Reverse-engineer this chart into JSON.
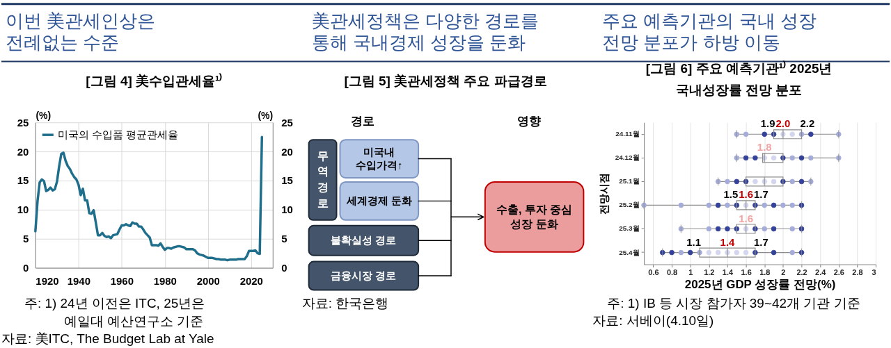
{
  "chart_data": [
    {
      "type": "line",
      "title": "이번 美관세인상은\n전례없는 수준",
      "subtitle": "[그림 4] 美수입관세율¹⁾",
      "x": [
        1920,
        1921,
        1922,
        1923,
        1924,
        1925,
        1926,
        1927,
        1928,
        1929,
        1930,
        1931,
        1932,
        1933,
        1934,
        1935,
        1936,
        1937,
        1938,
        1939,
        1940,
        1941,
        1942,
        1943,
        1944,
        1945,
        1946,
        1947,
        1948,
        1949,
        1950,
        1951,
        1952,
        1953,
        1954,
        1955,
        1956,
        1957,
        1958,
        1959,
        1960,
        1961,
        1962,
        1963,
        1964,
        1965,
        1966,
        1967,
        1968,
        1969,
        1970,
        1971,
        1972,
        1973,
        1974,
        1975,
        1976,
        1977,
        1978,
        1979,
        1980,
        1981,
        1982,
        1983,
        1984,
        1985,
        1986,
        1987,
        1988,
        1989,
        1990,
        1991,
        1992,
        1993,
        1994,
        1995,
        1996,
        1997,
        1998,
        1999,
        2000,
        2001,
        2002,
        2003,
        2004,
        2005,
        2006,
        2007,
        2008,
        2009,
        2010,
        2011,
        2012,
        2013,
        2014,
        2015,
        2016,
        2017,
        2018,
        2019,
        2020,
        2021,
        2022,
        2023,
        2024,
        2025
      ],
      "series": [
        {
          "name": "미국의 수입품 평균관세율",
          "color": "#1f6e8c",
          "values": [
            6.3,
            11.5,
            14.7,
            15.2,
            14.9,
            13.2,
            13.4,
            13.8,
            13.3,
            13.5,
            14.8,
            17.4,
            19.6,
            19.8,
            18.4,
            17.5,
            17.0,
            16.2,
            15.6,
            15.2,
            14.3,
            12.5,
            13.6,
            11.6,
            11.6,
            9.4,
            9.3,
            9.9,
            7.8,
            5.6,
            5.6,
            6.0,
            5.5,
            5.3,
            5.4,
            5.1,
            5.6,
            5.7,
            5.8,
            6.6,
            7.3,
            7.3,
            7.5,
            7.3,
            7.2,
            7.8,
            7.6,
            7.6,
            7.1,
            7.1,
            6.6,
            6.0,
            5.6,
            5.2,
            3.9,
            3.9,
            3.9,
            3.8,
            4.2,
            3.6,
            3.1,
            3.4,
            3.4,
            3.3,
            3.5,
            3.6,
            3.7,
            3.7,
            3.6,
            3.5,
            3.2,
            3.2,
            3.2,
            3.2,
            3.0,
            2.5,
            2.3,
            2.2,
            2.1,
            1.9,
            1.7,
            1.7,
            1.7,
            1.6,
            1.5,
            1.5,
            1.4,
            1.4,
            1.4,
            1.3,
            1.4,
            1.4,
            1.4,
            1.4,
            1.5,
            1.5,
            1.5,
            1.5,
            2.0,
            2.9,
            2.9,
            2.9,
            3.0,
            2.5,
            2.4,
            22.5
          ]
        }
      ],
      "xlim": [
        1920,
        2030
      ],
      "xticks": [
        1920,
        1940,
        1960,
        1980,
        2000,
        2020
      ],
      "ylim": [
        0,
        25
      ],
      "yticks": [
        0,
        5,
        10,
        15,
        20,
        25
      ],
      "ylabel": "(%)",
      "y2lim": [
        0,
        25
      ],
      "y2ticks": [
        0,
        5,
        10,
        15,
        20,
        25
      ],
      "y2label": "(%)",
      "grid": true,
      "legend": "top left",
      "annotations": [
        "주: 1) 24년 이전은 ITC, 25년은\n예일대 예산연구소 기준",
        "자료: 美ITC, The Budget Lab at Yale"
      ]
    },
    {
      "type": "other",
      "title": "美관세정책은 다양한 경로를\n통해 국내경제 성장을 둔화",
      "subtitle": "[그림 5] 美관세정책 주요 파급경로",
      "annotations": [
        "경로",
        "영향",
        "무역경로",
        "미국내\n수입가격↑",
        "세계경제 둔화",
        "불확실성 경로",
        "금융시장 경로",
        "수출, 투자 중심\n성장 둔화",
        "자료: 한국은행"
      ]
    },
    {
      "type": "box",
      "title": "주요 예측기관의 국내 성장\n전망 분포가 하방 이동",
      "subtitle": "[그림 6] 주요 예측기관¹⁾ 2025년\n국내성장률 전망 분포",
      "orientation": "horizontal",
      "categories": [
        "24.11월",
        "24.12월",
        "25.1월",
        "25.2월",
        "25.3월",
        "25.4월"
      ],
      "series": [
        {
          "type": "box",
          "color": "#8c8c8c",
          "boxes": [
            {
              "low": 1.5,
              "q1": 1.9,
              "median": 2.0,
              "q3": 2.2,
              "high": 2.6
            },
            {
              "low": 1.5,
              "q1": 1.78,
              "median": 1.8,
              "q3": 2.0,
              "high": 2.6
            },
            {
              "low": 1.3,
              "q1": 1.6,
              "median": 1.8,
              "q3": 2.0,
              "high": 2.3
            },
            {
              "low": 0.5,
              "q1": 1.5,
              "median": 1.6,
              "q3": 1.7,
              "high": 2.2
            },
            {
              "low": 0.9,
              "q1": 1.5,
              "median": 1.6,
              "q3": 1.7,
              "high": 2.2
            },
            {
              "low": 0.7,
              "q1": 1.1,
              "median": 1.4,
              "q3": 1.7,
              "high": 2.2
            }
          ]
        },
        {
          "type": "scatter",
          "x": [
            "24.11월",
            "24.11월",
            "24.11월",
            "24.11월",
            "24.11월",
            "24.11월",
            "24.11월",
            "24.11월",
            "24.11월",
            "24.12월",
            "24.12월",
            "24.12월",
            "24.12월",
            "24.12월",
            "24.12월",
            "24.12월",
            "24.12월",
            "24.12월",
            "24.12월",
            "25.1월",
            "25.1월",
            "25.1월",
            "25.1월",
            "25.1월",
            "25.1월",
            "25.1월",
            "25.1월",
            "25.1월",
            "25.1월",
            "25.1월",
            "25.2월",
            "25.2월",
            "25.2월",
            "25.2월",
            "25.2월",
            "25.2월",
            "25.2월",
            "25.2월",
            "25.2월",
            "25.2월",
            "25.2월",
            "25.2월",
            "25.2월",
            "25.3월",
            "25.3월",
            "25.3월",
            "25.3월",
            "25.3월",
            "25.3월",
            "25.3월",
            "25.3월",
            "25.3월",
            "25.3월",
            "25.3월",
            "25.4월",
            "25.4월",
            "25.4월",
            "25.4월",
            "25.4월",
            "25.4월",
            "25.4월",
            "25.4월",
            "25.4월",
            "25.4월",
            "25.4월",
            "25.4월",
            "25.4월",
            "25.4월"
          ],
          "values": [
            1.5,
            1.6,
            1.8,
            1.9,
            2.0,
            2.1,
            2.2,
            2.3,
            2.6,
            1.5,
            1.6,
            1.7,
            1.8,
            1.9,
            2.0,
            2.1,
            2.2,
            2.3,
            2.6,
            1.3,
            1.4,
            1.5,
            1.6,
            1.7,
            1.8,
            1.9,
            2.0,
            2.1,
            2.2,
            2.3,
            0.5,
            0.9,
            1.2,
            1.3,
            1.4,
            1.5,
            1.6,
            1.7,
            1.8,
            1.9,
            2.0,
            2.1,
            2.2,
            0.9,
            1.2,
            1.3,
            1.4,
            1.5,
            1.6,
            1.7,
            1.8,
            1.9,
            2.1,
            2.2,
            0.7,
            0.8,
            0.9,
            1.0,
            1.1,
            1.2,
            1.3,
            1.4,
            1.5,
            1.6,
            1.7,
            1.9,
            2.1,
            2.2
          ],
          "colors": [
            "#a5acd9",
            "#a5acd9",
            "#34429a",
            "#34429a",
            "#d3d6ee",
            "#d3d6ee",
            "#a5acd9",
            "#34429a",
            "#a5acd9",
            "#a5acd9",
            "#34429a",
            "#34429a",
            "#d3d6ee",
            "#d3d6ee",
            "#34429a",
            "#a5acd9",
            "#34429a",
            "#a5acd9",
            "#a5acd9",
            "#a5acd9",
            "#a5acd9",
            "#34429a",
            "#34429a",
            "#d3d6ee",
            "#d3d6ee",
            "#d3d6ee",
            "#34429a",
            "#a5acd9",
            "#34429a",
            "#a5acd9",
            "#a5acd9",
            "#a5acd9",
            "#a5acd9",
            "#34429a",
            "#a5acd9",
            "#34429a",
            "#d3d6ee",
            "#34429a",
            "#a5acd9",
            "#34429a",
            "#a5acd9",
            "#a5acd9",
            "#34429a",
            "#a5acd9",
            "#a5acd9",
            "#34429a",
            "#34429a",
            "#34429a",
            "#d3d6ee",
            "#34429a",
            "#a5acd9",
            "#34429a",
            "#a5acd9",
            "#34429a",
            "#34429a",
            "#34429a",
            "#a5acd9",
            "#34429a",
            "#a5acd9",
            "#d3d6ee",
            "#d3d6ee",
            "#d3d6ee",
            "#d3d6ee",
            "#d3d6ee",
            "#34429a",
            "#34429a",
            "#a5acd9",
            "#34429a"
          ]
        }
      ],
      "xlim": [
        0.5,
        3
      ],
      "xticks": [
        0.6,
        0.8,
        1,
        1.2,
        1.4,
        1.6,
        1.8,
        2,
        2.2,
        2.4,
        2.6,
        2.8,
        3
      ],
      "xlabel": "2025년 GDP 성장률 전망(%)",
      "ylabel": "전망시점",
      "grid": "x",
      "marker": "circle",
      "annotations": [
        {
          "text": "1.9",
          "x": 1.9,
          "y": "24.11월"
        },
        {
          "text": "2.0",
          "x": 2.0,
          "y": "24.11월"
        },
        {
          "text": "2.2",
          "x": 2.2,
          "y": "24.11월"
        },
        {
          "text": "1.8",
          "x": 1.8,
          "y": "24.12월"
        },
        {
          "text": "1.5",
          "x": 1.5,
          "y": "25.2월"
        },
        {
          "text": "1.6",
          "x": 1.6,
          "y": "25.2월"
        },
        {
          "text": "1.7",
          "x": 1.7,
          "y": "25.2월"
        },
        {
          "text": "1.6",
          "x": 1.6,
          "y": "25.3월"
        },
        {
          "text": "1.1",
          "x": 1.1,
          "y": "25.4월"
        },
        {
          "text": "1.4",
          "x": 1.4,
          "y": "25.4월"
        },
        {
          "text": "1.7",
          "x": 1.7,
          "y": "25.4월"
        },
        "주: 1) IB 등 시장 참가자 39~42개 기관 기준",
        "자료: 서베이(4.10일)"
      ]
    }
  ]
}
